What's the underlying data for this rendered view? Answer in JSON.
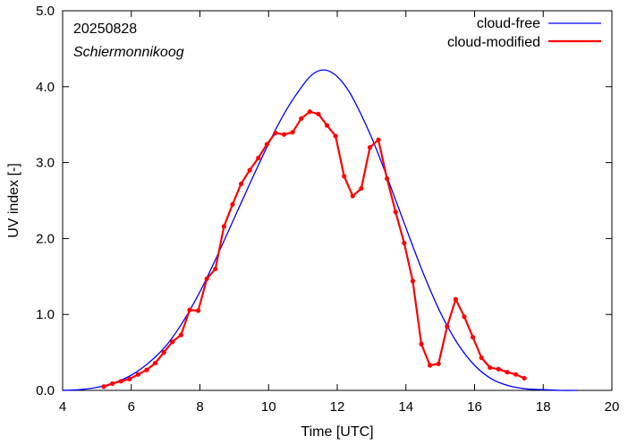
{
  "chart_data": {
    "type": "line",
    "title": "",
    "annotations": {
      "date": "20250828",
      "location": "Schiermonnikoog"
    },
    "xlabel": "Time  [UTC]",
    "ylabel": "UV index  [-]",
    "xlim": [
      4,
      20
    ],
    "ylim": [
      0,
      5
    ],
    "xticks": [
      4,
      6,
      8,
      10,
      12,
      14,
      16,
      18,
      20
    ],
    "xtick_labels": [
      "4",
      "6",
      "8",
      "10",
      "12",
      "14",
      "16",
      "18",
      "20"
    ],
    "yticks": [
      0,
      1,
      2,
      3,
      4,
      5
    ],
    "ytick_labels": [
      "0.0",
      "1.0",
      "2.0",
      "3.0",
      "4.0",
      "5.0"
    ],
    "grid": false,
    "legend": "top-right",
    "series": [
      {
        "name": "cloud-free",
        "color": "#0000ff",
        "style": "line",
        "peak_time": 11.6,
        "peak_value": 4.22,
        "x": [
          4.0,
          4.5,
          5.0,
          5.5,
          6.0,
          6.5,
          7.0,
          7.5,
          8.0,
          8.5,
          9.0,
          9.5,
          10.0,
          10.5,
          11.0,
          11.3,
          11.6,
          11.9,
          12.2,
          12.5,
          13.0,
          13.5,
          14.0,
          14.5,
          15.0,
          15.5,
          16.0,
          16.5,
          17.0,
          17.5,
          18.0,
          18.5,
          19.0
        ],
        "values": [
          0.0,
          0.01,
          0.04,
          0.1,
          0.2,
          0.36,
          0.58,
          0.9,
          1.3,
          1.77,
          2.27,
          2.77,
          3.25,
          3.68,
          4.02,
          4.17,
          4.22,
          4.17,
          4.03,
          3.81,
          3.33,
          2.75,
          2.14,
          1.55,
          1.03,
          0.62,
          0.33,
          0.15,
          0.06,
          0.02,
          0.01,
          0.0,
          0.0
        ]
      },
      {
        "name": "cloud-modified",
        "color": "#ff0000",
        "style": "line-markers",
        "x": [
          5.2,
          5.45,
          5.7,
          5.95,
          6.2,
          6.45,
          6.7,
          6.95,
          7.2,
          7.45,
          7.7,
          7.95,
          8.2,
          8.45,
          8.7,
          8.95,
          9.2,
          9.45,
          9.7,
          9.95,
          10.2,
          10.45,
          10.7,
          10.95,
          11.2,
          11.45,
          11.7,
          11.95,
          12.2,
          12.45,
          12.7,
          12.95,
          13.2,
          13.45,
          13.7,
          13.95,
          14.2,
          14.45,
          14.7,
          14.95,
          15.2,
          15.45,
          15.7,
          15.95,
          16.2,
          16.45,
          16.7,
          16.95,
          17.2,
          17.45
        ],
        "values": [
          0.05,
          0.09,
          0.12,
          0.15,
          0.21,
          0.27,
          0.36,
          0.5,
          0.64,
          0.73,
          1.06,
          1.05,
          1.47,
          1.6,
          2.16,
          2.45,
          2.72,
          2.9,
          3.06,
          3.24,
          3.39,
          3.37,
          3.4,
          3.58,
          3.67,
          3.64,
          3.49,
          3.35,
          2.82,
          2.56,
          2.66,
          3.2,
          3.3,
          2.79,
          2.35,
          1.94,
          1.44,
          0.61,
          0.33,
          0.35,
          0.84,
          1.2,
          0.97,
          0.7,
          0.43,
          0.3,
          0.28,
          0.24,
          0.21,
          0.16
        ]
      }
    ]
  }
}
